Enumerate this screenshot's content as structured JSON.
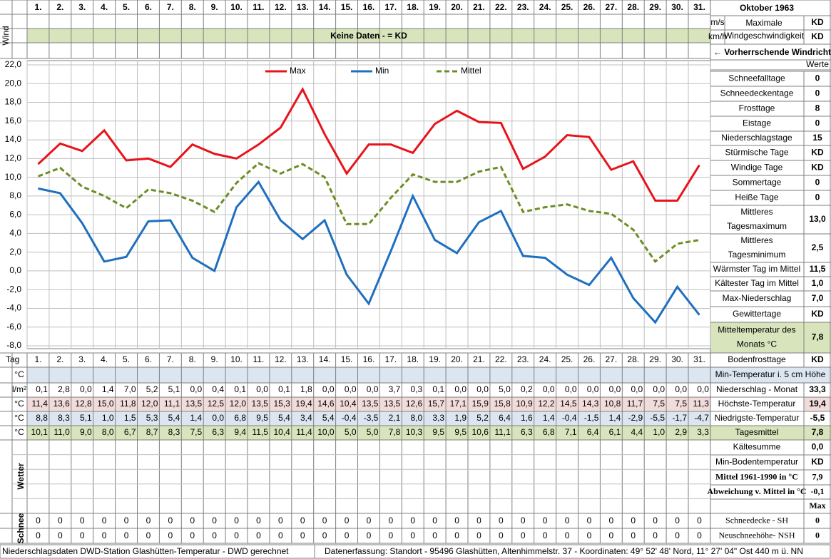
{
  "chart_data": {
    "type": "line",
    "categories": [
      "1.",
      "2.",
      "3.",
      "4.",
      "5.",
      "6.",
      "7.",
      "8.",
      "9.",
      "10.",
      "11.",
      "12.",
      "13.",
      "14.",
      "15.",
      "16.",
      "17.",
      "18.",
      "19.",
      "20.",
      "21.",
      "22.",
      "23.",
      "24.",
      "25.",
      "26.",
      "27.",
      "28.",
      "29.",
      "30.",
      "31."
    ],
    "series": [
      {
        "name": "Max",
        "color": "#e8131b",
        "values": [
          11.4,
          13.6,
          12.8,
          15.0,
          11.8,
          12.0,
          11.1,
          13.5,
          12.5,
          12.0,
          13.5,
          15.3,
          19.4,
          14.6,
          10.4,
          13.5,
          13.5,
          12.6,
          15.7,
          17.1,
          15.9,
          15.8,
          10.9,
          12.2,
          14.5,
          14.3,
          10.8,
          11.7,
          7.5,
          7.5,
          11.3
        ]
      },
      {
        "name": "Min",
        "color": "#1f6fbf",
        "values": [
          8.8,
          8.3,
          5.1,
          1.0,
          1.5,
          5.3,
          5.4,
          1.4,
          0.0,
          6.8,
          9.5,
          5.4,
          3.4,
          5.4,
          -0.4,
          -3.5,
          2.1,
          8.0,
          3.3,
          1.9,
          5.2,
          6.4,
          1.6,
          1.4,
          -0.4,
          -1.5,
          1.4,
          -2.9,
          -5.5,
          -1.7,
          -4.7
        ]
      },
      {
        "name": "Mittel",
        "color": "#6b8e23",
        "dashed": true,
        "values": [
          10.1,
          11.0,
          9.0,
          8.0,
          6.7,
          8.7,
          8.3,
          7.5,
          6.3,
          9.4,
          11.5,
          10.4,
          11.4,
          10.0,
          5.0,
          5.0,
          7.8,
          10.3,
          9.5,
          9.5,
          10.6,
          11.1,
          6.3,
          6.8,
          7.1,
          6.4,
          6.1,
          4.4,
          1.0,
          2.9,
          3.3
        ]
      }
    ],
    "ylim": [
      -8,
      22
    ],
    "yticks": [
      {
        "value": -8,
        "label": "-8,0"
      },
      {
        "value": -6,
        "label": "-6,0"
      },
      {
        "value": -4,
        "label": "-4,0"
      },
      {
        "value": -2,
        "label": "-2,0"
      },
      {
        "value": 0,
        "label": "0,0"
      },
      {
        "value": 2,
        "label": "2,0"
      },
      {
        "value": 4,
        "label": "4,0"
      },
      {
        "value": 6,
        "label": "6,0"
      },
      {
        "value": 8,
        "label": "8,0"
      },
      {
        "value": 10,
        "label": "10,0"
      },
      {
        "value": 12,
        "label": "12,0"
      },
      {
        "value": 14,
        "label": "14,0"
      },
      {
        "value": 16,
        "label": "16,0"
      },
      {
        "value": 18,
        "label": "18,0"
      },
      {
        "value": 20,
        "label": "20,0"
      },
      {
        "value": 22,
        "label": "22,0"
      }
    ],
    "grid": true
  },
  "header": {
    "month": "Oktober 1963",
    "wind_label": "Wind",
    "ms": "m/s",
    "kmh": "km/h",
    "max_wind": [
      "Maximale",
      "Windgeschwindigkeit"
    ],
    "ms_value": "KD",
    "kmh_value": "KD",
    "no_data": "Keine Daten -  = KD",
    "direction": "← Vorherrschende Windrichtung",
    "werte": "Werte"
  },
  "table": {
    "day_label": "Tag",
    "rows": [
      {
        "unit": "°C",
        "cells": []
      },
      {
        "unit": "l/m²",
        "cells": [
          "0,1",
          "2,8",
          "0,0",
          "1,4",
          "7,0",
          "5,2",
          "5,1",
          "0,0",
          "0,4",
          "0,1",
          "0,0",
          "0,1",
          "1,8",
          "0,0",
          "0,0",
          "0,0",
          "3,7",
          "0,3",
          "0,1",
          "0,0",
          "0,0",
          "5,0",
          "0,2",
          "0,0",
          "0,0",
          "0,0",
          "0,0",
          "0,0",
          "0,0",
          "0,0",
          "0,0"
        ]
      },
      {
        "unit": "°C",
        "cells": [
          "11,4",
          "13,6",
          "12,8",
          "15,0",
          "11,8",
          "12,0",
          "11,1",
          "13,5",
          "12,5",
          "12,0",
          "13,5",
          "15,3",
          "19,4",
          "14,6",
          "10,4",
          "13,5",
          "13,5",
          "12,6",
          "15,7",
          "17,1",
          "15,9",
          "15,8",
          "10,9",
          "12,2",
          "14,5",
          "14,3",
          "10,8",
          "11,7",
          "7,5",
          "7,5",
          "11,3"
        ]
      },
      {
        "unit": "°C",
        "cells": [
          "8,8",
          "8,3",
          "5,1",
          "1,0",
          "1,5",
          "5,3",
          "5,4",
          "1,4",
          "0,0",
          "6,8",
          "9,5",
          "5,4",
          "3,4",
          "5,4",
          "-0,4",
          "-3,5",
          "2,1",
          "8,0",
          "3,3",
          "1,9",
          "5,2",
          "6,4",
          "1,6",
          "1,4",
          "-0,4",
          "-1,5",
          "1,4",
          "-2,9",
          "-5,5",
          "-1,7",
          "-4,7"
        ]
      },
      {
        "unit": "°C",
        "cells": [
          "10,1",
          "11,0",
          "9,0",
          "8,0",
          "6,7",
          "8,7",
          "8,3",
          "7,5",
          "6,3",
          "9,4",
          "11,5",
          "10,4",
          "11,4",
          "10,0",
          "5,0",
          "5,0",
          "7,8",
          "10,3",
          "9,5",
          "9,5",
          "10,6",
          "11,1",
          "6,3",
          "6,8",
          "7,1",
          "6,4",
          "6,1",
          "4,4",
          "1,0",
          "2,9",
          "3,3"
        ]
      }
    ],
    "weather_label": "Wetter",
    "snow_label": "Schnee",
    "snow_rows": [
      [
        0,
        0,
        0,
        0,
        0,
        0,
        0,
        0,
        0,
        0,
        0,
        0,
        0,
        0,
        0,
        0,
        0,
        0,
        0,
        0,
        0,
        0,
        0,
        0,
        0,
        0,
        0,
        0,
        0,
        0,
        0
      ],
      [
        0,
        0,
        0,
        0,
        0,
        0,
        0,
        0,
        0,
        0,
        0,
        0,
        0,
        0,
        0,
        0,
        0,
        0,
        0,
        0,
        0,
        0,
        0,
        0,
        0,
        0,
        0,
        0,
        0,
        0,
        0
      ]
    ]
  },
  "summary": [
    {
      "label": [
        "Schneefalltage"
      ],
      "value": "0"
    },
    {
      "label": [
        "Schneedeckentage"
      ],
      "value": "0"
    },
    {
      "label": [
        "Frosttage"
      ],
      "value": "8"
    },
    {
      "label": [
        "Eistage"
      ],
      "value": "0"
    },
    {
      "label": [
        "Niederschlagstage"
      ],
      "value": "15"
    },
    {
      "label": [
        "Stürmische Tage"
      ],
      "value": "KD"
    },
    {
      "label": [
        "Windige Tage"
      ],
      "value": "KD"
    },
    {
      "label": [
        "Sommertage"
      ],
      "value": "0"
    },
    {
      "label": [
        "Heiße Tage"
      ],
      "value": "0"
    },
    {
      "label": [
        "Mittleres",
        "Tagesmaximum"
      ],
      "value": "13,0"
    },
    {
      "label": [
        "Mittleres",
        "Tagesminimum"
      ],
      "value": "2,5"
    },
    {
      "label": [
        "Wärmster Tag im Mittel"
      ],
      "value": "11,5"
    },
    {
      "label": [
        "Kältester Tag im Mittel"
      ],
      "value": "1,0"
    },
    {
      "label": [
        "Max-Niederschlag"
      ],
      "value": "7,0"
    },
    {
      "label": [
        "Gewittertage"
      ],
      "value": "KD"
    },
    {
      "label": [
        "Mitteltemperatur des",
        "Monats °C"
      ],
      "value": "7,8"
    },
    {
      "label": [
        "Bodenfrosttage"
      ],
      "value": "KD"
    },
    {
      "label": [
        "Min-Temperatur i. 5 cm Höhe"
      ]
    },
    {
      "label": [
        "Niederschlag - Monat"
      ],
      "value": "33,3"
    },
    {
      "label": [
        "Höchste-Temperatur"
      ],
      "value": "19,4"
    },
    {
      "label": [
        "Niedrigste-Temperatur"
      ],
      "value": "-5,5"
    },
    {
      "label": [
        "Tagesmittel"
      ],
      "value": "7,8"
    },
    {
      "label": [
        "Kältesumme"
      ],
      "value": "0,0"
    },
    {
      "label": [
        "Min-Bodentemperatur"
      ],
      "value": "KD"
    },
    {
      "label": [
        "Mittel 1961-1990 in °C"
      ],
      "value": "7,9"
    },
    {
      "label": [
        "Abweichung v. Mittel in °C"
      ],
      "value": "-0,1"
    },
    {
      "value": "Max"
    },
    {
      "label": [
        "Schneedecke -  SH"
      ],
      "value": "0"
    },
    {
      "label": [
        "Neuschneehöhe- NSH"
      ],
      "value": "0"
    }
  ],
  "footer": {
    "source": "Niederschlagsdaten DWD-Station Glashütten-Temperatur -  DWD gerechnet",
    "location": "Datenerfassung: Standort -  95496  Glashütten, Altenhimmelstr. 37 - Koordinaten:  49° 52' 48' Nord,   11° 27' 04\" Ost   440 m ü. NN"
  }
}
